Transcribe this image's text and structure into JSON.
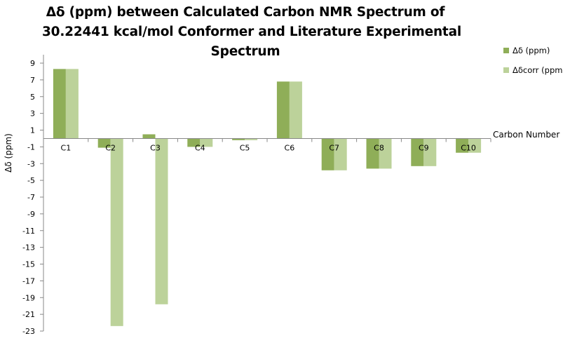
{
  "chart_data": {
    "type": "bar",
    "title_lines": [
      "Δδ (ppm) between Calculated Carbon NMR Spectrum of",
      "30.22441 kcal/mol Conformer and Literature Experimental",
      "Spectrum"
    ],
    "xlabel": "Carbon Number",
    "ylabel": "Δδ (ppm)",
    "ylim": [
      -23,
      9
    ],
    "yticks": [
      "9",
      "7",
      "5",
      "3",
      "1",
      "-1",
      "-3",
      "-5",
      "-7",
      "-9",
      "-11",
      "-13",
      "-15",
      "-17",
      "-19",
      "-21",
      "-23"
    ],
    "categories": [
      "C1",
      "C2",
      "C3",
      "C4",
      "C5",
      "C6",
      "C7",
      "C8",
      "C9",
      "C10"
    ],
    "series": [
      {
        "name": "Δδ (ppm)",
        "color": "#8fae58",
        "values": [
          8.3,
          -1.1,
          0.5,
          -1.0,
          -0.2,
          6.8,
          -3.8,
          -3.6,
          -3.3,
          -1.7
        ]
      },
      {
        "name": "Δδcorr (ppm)",
        "color": "#bcd29a",
        "values": [
          8.3,
          -22.4,
          -19.8,
          -1.0,
          -0.2,
          6.8,
          -3.8,
          -3.6,
          -3.3,
          -1.7
        ]
      }
    ],
    "grid": false,
    "legend": "right"
  }
}
